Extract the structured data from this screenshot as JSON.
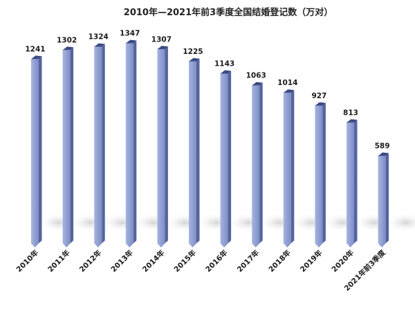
{
  "chart_data": {
    "type": "bar",
    "title": "2010年—2021年前3季度全国结婚登记数（万对）",
    "categories": [
      "2010年",
      "2011年",
      "2012年",
      "2013年",
      "2014年",
      "2015年",
      "2016年",
      "2017年",
      "2018年",
      "2019年",
      "2020年",
      "2021年前3季度"
    ],
    "values": [
      1241,
      1302,
      1324,
      1347,
      1307,
      1225,
      1143,
      1063,
      1014,
      927,
      813,
      589
    ],
    "xlabel": "",
    "ylabel": "",
    "ylim": [
      0,
      1400
    ],
    "grid": false,
    "legend": "none",
    "colors": {
      "bar_front": "#8f9fd0",
      "bar_side": "#55649f",
      "bar_top": "#3c4a85"
    }
  }
}
